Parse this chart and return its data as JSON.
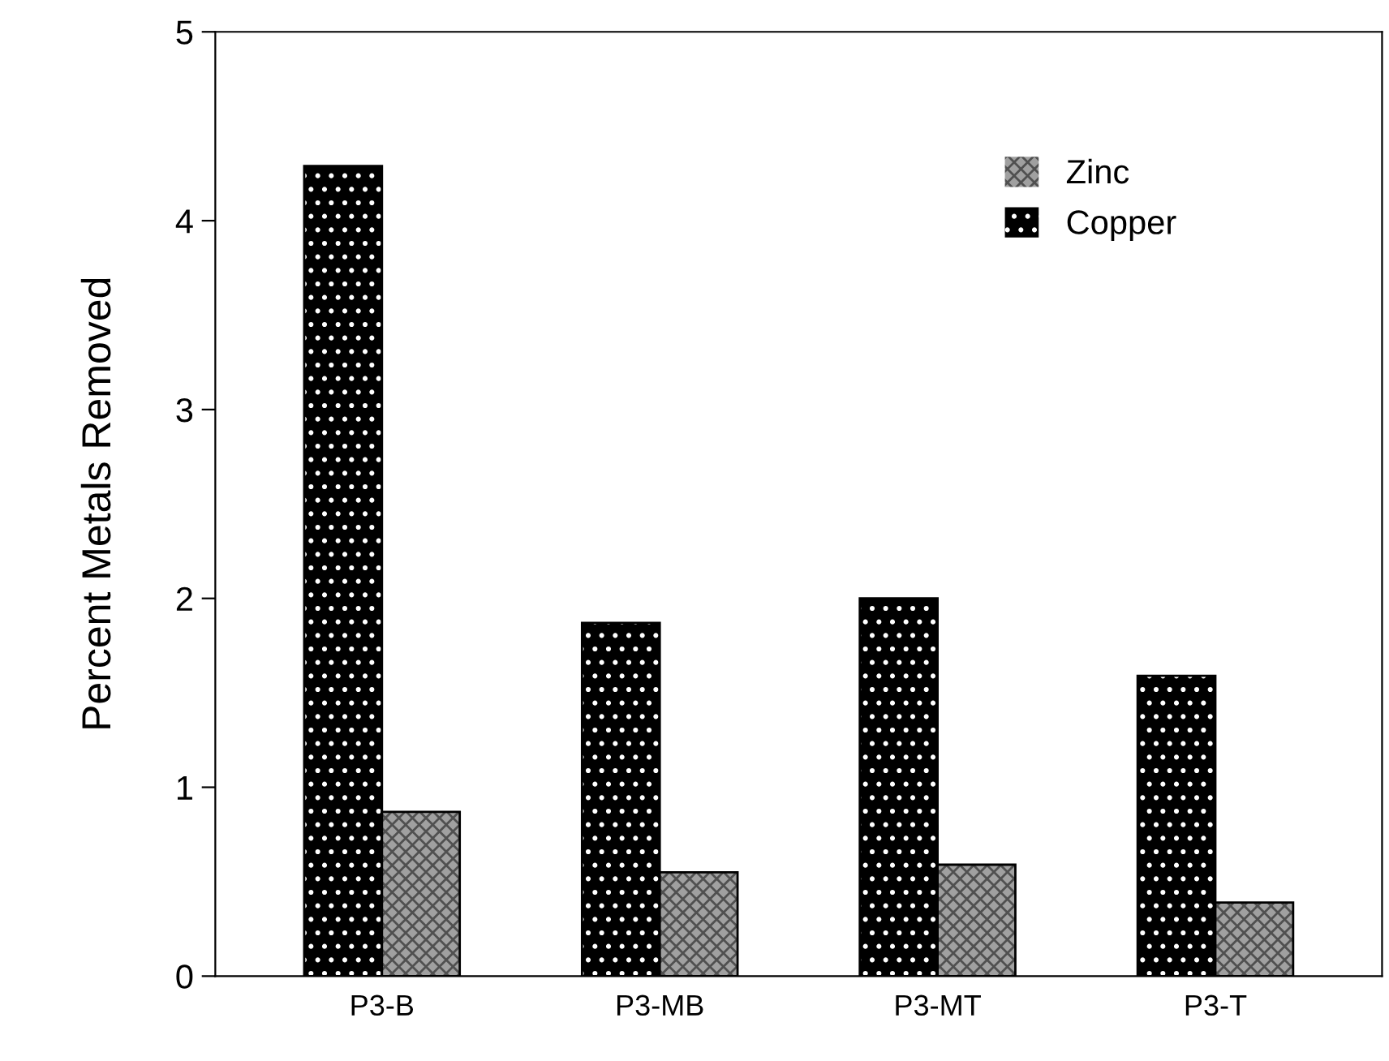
{
  "chart_data": {
    "type": "bar",
    "ylabel": "Percent Metals Removed",
    "categories": [
      "P3-B",
      "P3-MB",
      "P3-MT",
      "P3-T"
    ],
    "series": [
      {
        "name": "Copper",
        "color": "#000000",
        "values": [
          4.29,
          1.87,
          2.0,
          1.59
        ]
      },
      {
        "name": "Zinc",
        "color": "#a0a0a0",
        "values": [
          0.87,
          0.55,
          0.59,
          0.39
        ]
      }
    ],
    "ylim": [
      0,
      5
    ],
    "yticks": [
      0,
      1,
      2,
      3,
      4,
      5
    ],
    "grid": false,
    "legend": "top right"
  }
}
